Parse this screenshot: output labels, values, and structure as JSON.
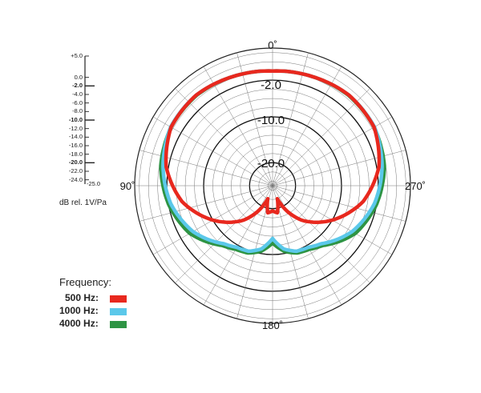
{
  "chart_data": {
    "type": "polar",
    "angle_labels": [
      "0˚",
      "90˚",
      "180˚",
      "270˚"
    ],
    "ring_labels": [
      "-2.0",
      "-10.0",
      "-20.0"
    ],
    "scale_ticks": [
      {
        "label": "+5.0",
        "value": 5,
        "bold": false
      },
      {
        "label": "0.0",
        "value": 0,
        "bold": false
      },
      {
        "label": "-2.0",
        "value": -2,
        "bold": true
      },
      {
        "label": "-4.0",
        "value": -4,
        "bold": false
      },
      {
        "label": "-6.0",
        "value": -6,
        "bold": false
      },
      {
        "label": "-8.0",
        "value": -8,
        "bold": false
      },
      {
        "label": "-10.0",
        "value": -10,
        "bold": true
      },
      {
        "label": "-12.0",
        "value": -12,
        "bold": false
      },
      {
        "label": "-14.0",
        "value": -14,
        "bold": false
      },
      {
        "label": "-16.0",
        "value": -16,
        "bold": false
      },
      {
        "label": "-18.0",
        "value": -18,
        "bold": false
      },
      {
        "label": "-20.0",
        "value": -20,
        "bold": true
      },
      {
        "label": "-22.0",
        "value": -22,
        "bold": false
      },
      {
        "label": "-24.0",
        "value": -24,
        "bold": false
      },
      {
        "label": "-25.0",
        "value": -25,
        "bold": false
      }
    ],
    "unit_label": "dB rel. 1V/Pa",
    "legend_title": "Frequency:",
    "range_db": [
      -25,
      5
    ],
    "series": [
      {
        "name": "500 Hz:",
        "color": "#e8281e",
        "angles_deg": [
          0,
          20,
          40,
          60,
          80,
          100,
          120,
          140,
          150,
          160,
          170,
          180
        ],
        "level_db": [
          0.0,
          0.3,
          0.8,
          0.5,
          -1.5,
          -5.0,
          -10.0,
          -15.2,
          -18.5,
          -22.0,
          -19.0,
          -19.5
        ]
      },
      {
        "name": "1000 Hz:",
        "color": "#5bc8ea",
        "angles_deg": [
          0,
          20,
          40,
          60,
          80,
          100,
          120,
          140,
          150,
          160,
          170,
          180
        ],
        "level_db": [
          0.0,
          0.3,
          0.8,
          0.6,
          -0.8,
          -2.5,
          -5.0,
          -8.5,
          -9.5,
          -9.8,
          -11.0,
          -13.5
        ]
      },
      {
        "name": "4000 Hz:",
        "color": "#2e9444",
        "angles_deg": [
          0,
          20,
          40,
          60,
          80,
          100,
          120,
          140,
          150,
          160,
          170,
          180
        ],
        "level_db": [
          0.0,
          0.3,
          0.7,
          0.5,
          -0.3,
          -2.0,
          -4.2,
          -8.0,
          -9.0,
          -9.4,
          -10.5,
          -12.5
        ]
      }
    ]
  }
}
